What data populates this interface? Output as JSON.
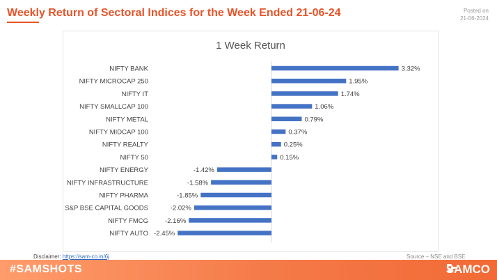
{
  "header": {
    "title": "Weekly Return of Sectoral Indices for the Week Ended 21-06-24",
    "posted_label": "Posted on",
    "posted_date": "21-06-2024"
  },
  "footer": {
    "disclaimer_label": "Disclaimer:",
    "disclaimer_link": "https://sam-co.in/6j",
    "source": "Source – NSE and BSE",
    "hashtag": "#SAMSHOTS",
    "logo_text": "SAMCO"
  },
  "colors": {
    "accent": "#e8542a",
    "bar": "#4472c4"
  },
  "chart_data": {
    "type": "bar",
    "orientation": "horizontal",
    "title": "1 Week Return",
    "categories": [
      "NIFTY BANK",
      "NIFTY MICROCAP 250",
      "NIFTY IT",
      "NIFTY SMALLCAP 100",
      "NIFTY METAL",
      "NIFTY MIDCAP 100",
      "NIFTY REALTY",
      "NIFTY 50",
      "NIFTY ENERGY",
      "NIFTY INFRASTRUCTURE",
      "NIFTY PHARMA",
      "S&P BSE CAPITAL GOODS",
      "NIFTY FMCG",
      "NIFTY AUTO"
    ],
    "values": [
      3.32,
      1.95,
      1.74,
      1.06,
      0.79,
      0.37,
      0.25,
      0.15,
      -1.42,
      -1.58,
      -1.85,
      -2.02,
      -2.16,
      -2.45
    ],
    "value_labels": [
      "3.32%",
      "1.95%",
      "1.74%",
      "1.06%",
      "0.79%",
      "0.37%",
      "0.25%",
      "0.15%",
      "-1.42%",
      "-1.58%",
      "-1.85%",
      "-2.02%",
      "-2.16%",
      "-2.45%"
    ],
    "xlim": [
      -2.45,
      3.32
    ],
    "grid": false
  }
}
